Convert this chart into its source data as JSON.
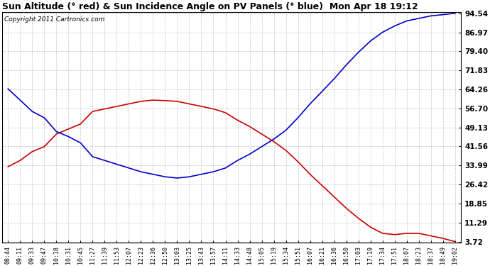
{
  "title": "Sun Altitude (° red) & Sun Incidence Angle on PV Panels (° blue)  Mon Apr 18 19:12",
  "copyright": "Copyright 2011 Cartronics.com",
  "background_color": "#ffffff",
  "plot_bg_color": "#ffffff",
  "grid_color": "#aaaaaa",
  "ytick_labels": [
    "3.72",
    "11.29",
    "18.85",
    "26.42",
    "33.99",
    "41.56",
    "49.13",
    "56.70",
    "64.26",
    "71.83",
    "79.40",
    "86.97",
    "94.54"
  ],
  "ytick_vals": [
    3.72,
    11.29,
    18.85,
    26.42,
    33.99,
    41.56,
    49.13,
    56.7,
    64.26,
    71.83,
    79.4,
    86.97,
    94.54
  ],
  "x_labels": [
    "08:44",
    "09:11",
    "09:33",
    "09:47",
    "10:18",
    "10:31",
    "10:45",
    "11:27",
    "11:39",
    "11:53",
    "12:07",
    "12:23",
    "12:36",
    "12:50",
    "13:03",
    "13:25",
    "13:43",
    "13:57",
    "14:11",
    "14:33",
    "14:48",
    "15:05",
    "15:19",
    "15:34",
    "15:51",
    "16:07",
    "16:21",
    "16:36",
    "16:50",
    "17:03",
    "17:19",
    "17:34",
    "17:51",
    "18:07",
    "18:23",
    "18:37",
    "18:49",
    "19:02"
  ],
  "red_values": [
    33.5,
    36.0,
    39.5,
    41.5,
    46.5,
    48.5,
    50.5,
    55.5,
    56.5,
    57.5,
    58.5,
    59.5,
    60.0,
    59.8,
    59.5,
    58.5,
    57.5,
    56.5,
    55.0,
    52.0,
    49.5,
    46.5,
    43.5,
    40.0,
    35.5,
    30.5,
    26.0,
    21.5,
    17.0,
    13.0,
    9.5,
    7.0,
    6.5,
    7.0,
    7.0,
    6.0,
    5.0,
    3.72
  ],
  "blue_values": [
    64.5,
    60.0,
    55.5,
    53.0,
    47.5,
    45.5,
    43.0,
    37.5,
    36.0,
    34.5,
    33.0,
    31.5,
    30.5,
    29.5,
    29.0,
    29.5,
    30.5,
    31.5,
    33.0,
    36.0,
    38.5,
    41.5,
    44.5,
    48.0,
    53.0,
    58.5,
    63.5,
    68.5,
    74.0,
    79.0,
    83.5,
    87.0,
    89.5,
    91.5,
    92.5,
    93.5,
    94.0,
    94.54
  ],
  "red_color": "#cc0000",
  "blue_color": "#0000cc",
  "ymin": 3.72,
  "ymax": 94.54
}
